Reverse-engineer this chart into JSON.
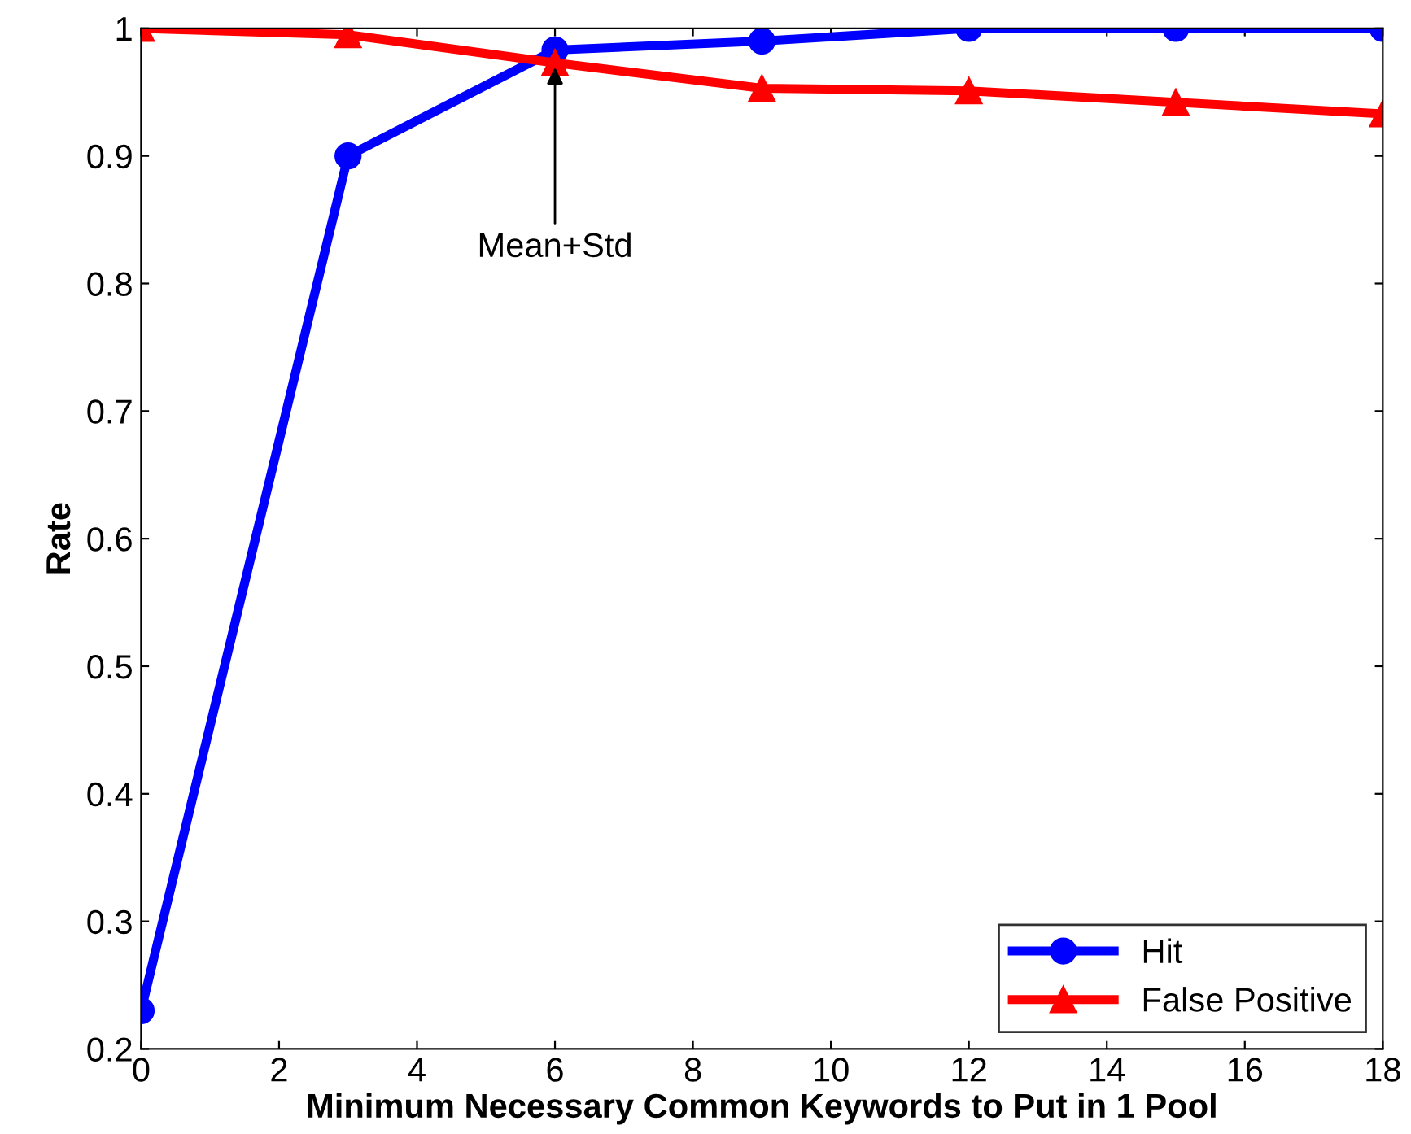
{
  "chart_data": {
    "type": "line",
    "xlabel": "Minimum Necessary Common Keywords to Put in 1 Pool",
    "ylabel": "Rate",
    "x": [
      0,
      3,
      6,
      9,
      12,
      15,
      18
    ],
    "series": [
      {
        "name": "Hit",
        "color": "#0000ff",
        "marker": "circle",
        "values": [
          0.23,
          0.9,
          0.983,
          0.99,
          1.0,
          1.0,
          1.0
        ]
      },
      {
        "name": "False Positive",
        "color": "#ff0000",
        "marker": "triangle",
        "values": [
          1.0,
          0.995,
          0.973,
          0.953,
          0.951,
          0.942,
          0.933
        ]
      }
    ],
    "xlim": [
      0,
      18
    ],
    "xticks": [
      0,
      2,
      4,
      6,
      8,
      10,
      12,
      14,
      16,
      18
    ],
    "ylim": [
      0.2,
      1
    ],
    "yticks": [
      0.2,
      0.3,
      0.4,
      0.5,
      0.6,
      0.7,
      0.8,
      0.9,
      1
    ],
    "annotations": [
      {
        "text": "Mean+Std",
        "x": 6,
        "y": 0.973
      }
    ],
    "legend": "bottom right",
    "grid": false,
    "line_style": "solid"
  }
}
